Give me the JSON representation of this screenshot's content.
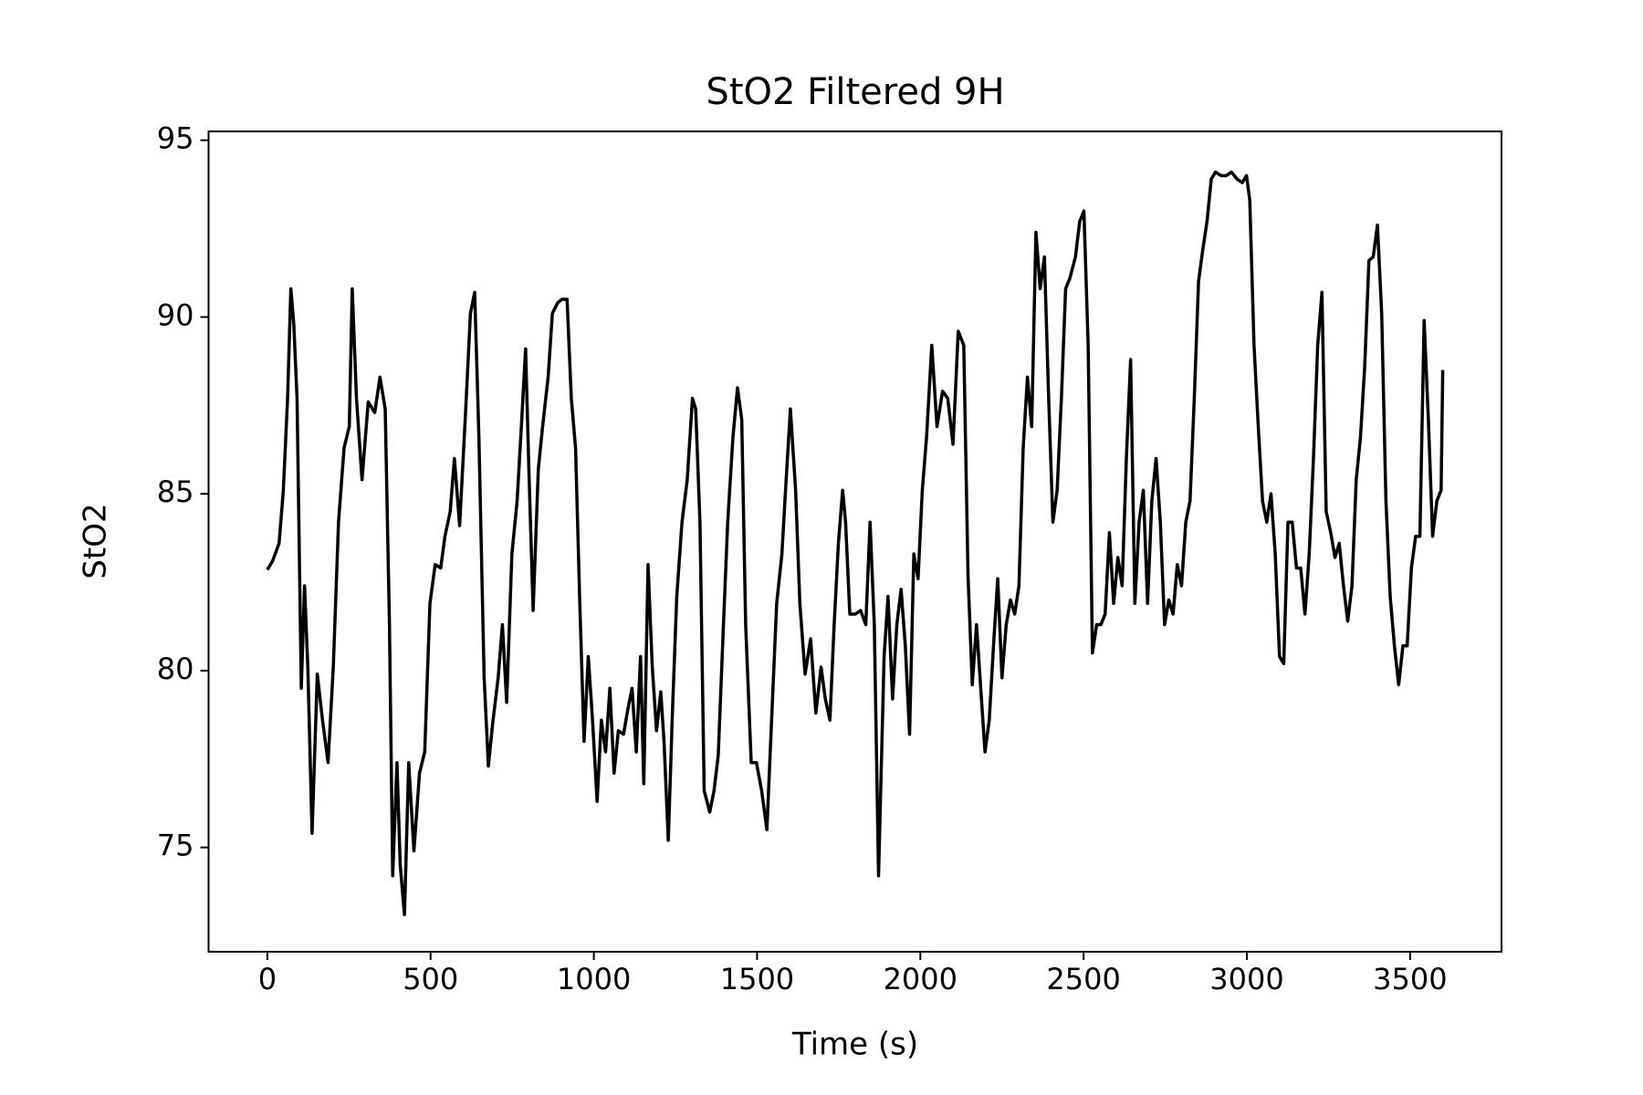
{
  "chart_data": {
    "type": "line",
    "title": "StO2 Filtered 9H",
    "x_label": "Time (s)",
    "y_label": "StO2",
    "xlim": [
      -180,
      3780
    ],
    "ylim": [
      72.05,
      95.25
    ],
    "xticks": [
      0,
      500,
      1000,
      1500,
      2000,
      2500,
      3000,
      3500
    ],
    "yticks": [
      75,
      80,
      85,
      90,
      95
    ],
    "grid": false,
    "series": [
      {
        "color": "#000000",
        "x": [
          0,
          16,
          36,
          49,
          62,
          72,
          81,
          91,
          104,
          114,
          124,
          137,
          153,
          169,
          186,
          202,
          218,
          235,
          251,
          260,
          273,
          290,
          309,
          329,
          345,
          361,
          374,
          384,
          397,
          407,
          420,
          433,
          449,
          466,
          482,
          498,
          514,
          531,
          544,
          560,
          573,
          589,
          606,
          622,
          635,
          648,
          664,
          677,
          690,
          707,
          720,
          733,
          749,
          765,
          778,
          791,
          801,
          814,
          830,
          843,
          860,
          873,
          889,
          902,
          918,
          931,
          944,
          957,
          970,
          983,
          996,
          1010,
          1023,
          1036,
          1049,
          1062,
          1075,
          1091,
          1104,
          1117,
          1130,
          1143,
          1153,
          1166,
          1179,
          1192,
          1205,
          1215,
          1228,
          1241,
          1254,
          1270,
          1286,
          1302,
          1312,
          1325,
          1338,
          1355,
          1368,
          1381,
          1397,
          1410,
          1426,
          1440,
          1453,
          1465,
          1482,
          1498,
          1514,
          1530,
          1543,
          1560,
          1576,
          1589,
          1602,
          1618,
          1631,
          1647,
          1664,
          1680,
          1696,
          1709,
          1723,
          1736,
          1749,
          1762,
          1771,
          1784,
          1801,
          1817,
          1833,
          1846,
          1859,
          1872,
          1889,
          1901,
          1915,
          1928,
          1941,
          1954,
          1967,
          1980,
          1993,
          2006,
          2019,
          2035,
          2051,
          2068,
          2084,
          2100,
          2116,
          2133,
          2146,
          2159,
          2172,
          2185,
          2198,
          2211,
          2224,
          2237,
          2250,
          2263,
          2276,
          2289,
          2302,
          2315,
          2328,
          2341,
          2354,
          2367,
          2380,
          2393,
          2406,
          2419,
          2432,
          2445,
          2458,
          2475,
          2488,
          2501,
          2514,
          2527,
          2540,
          2553,
          2566,
          2579,
          2592,
          2605,
          2618,
          2631,
          2644,
          2657,
          2670,
          2683,
          2696,
          2709,
          2722,
          2735,
          2748,
          2761,
          2774,
          2787,
          2800,
          2813,
          2826,
          2839,
          2852,
          2865,
          2878,
          2891,
          2904,
          2921,
          2937,
          2953,
          2970,
          2986,
          2999,
          3009,
          3022,
          3035,
          3048,
          3061,
          3074,
          3087,
          3100,
          3113,
          3126,
          3139,
          3152,
          3165,
          3178,
          3191,
          3204,
          3217,
          3230,
          3243,
          3257,
          3270,
          3283,
          3296,
          3309,
          3322,
          3335,
          3348,
          3361,
          3374,
          3387,
          3400,
          3413,
          3426,
          3439,
          3452,
          3465,
          3478,
          3491,
          3504,
          3517,
          3530,
          3543,
          3556,
          3569,
          3582,
          3595,
          3600
        ],
        "values": [
          82.85,
          83.1,
          83.6,
          85.1,
          87.7,
          90.8,
          89.8,
          87.7,
          79.5,
          82.4,
          80.1,
          75.4,
          79.9,
          78.6,
          77.4,
          80.1,
          84.2,
          86.3,
          86.9,
          90.8,
          87.7,
          85.4,
          87.6,
          87.3,
          88.3,
          87.4,
          81.3,
          74.2,
          77.4,
          74.5,
          73.1,
          77.4,
          74.9,
          77.1,
          77.7,
          81.9,
          83.0,
          82.9,
          83.8,
          84.5,
          86.0,
          84.1,
          87.1,
          90.1,
          90.7,
          86.6,
          79.8,
          77.3,
          78.5,
          79.8,
          81.3,
          79.1,
          83.3,
          84.8,
          86.9,
          89.1,
          85.7,
          81.7,
          85.7,
          86.9,
          88.3,
          90.1,
          90.4,
          90.5,
          90.5,
          87.7,
          86.3,
          81.9,
          78.0,
          80.4,
          78.6,
          76.3,
          78.6,
          77.7,
          79.5,
          77.1,
          78.3,
          78.2,
          78.9,
          79.5,
          77.7,
          80.4,
          76.8,
          83.0,
          80.1,
          78.3,
          79.4,
          78.0,
          75.2,
          78.9,
          82.1,
          84.2,
          85.4,
          87.7,
          87.4,
          84.2,
          76.6,
          76.0,
          76.6,
          77.6,
          81.3,
          84.2,
          86.6,
          88.0,
          87.1,
          81.3,
          77.4,
          77.4,
          76.6,
          75.5,
          78.3,
          81.9,
          83.3,
          85.4,
          87.4,
          85.1,
          81.9,
          79.9,
          80.9,
          78.8,
          80.1,
          79.2,
          78.6,
          81.3,
          83.6,
          85.1,
          84.2,
          81.6,
          81.6,
          81.7,
          81.3,
          84.2,
          81.3,
          74.2,
          80.4,
          82.1,
          79.2,
          81.3,
          82.3,
          80.7,
          78.2,
          83.3,
          82.6,
          85.1,
          86.6,
          89.2,
          86.9,
          87.9,
          87.7,
          86.4,
          89.6,
          89.2,
          82.7,
          79.6,
          81.3,
          79.5,
          77.7,
          78.6,
          80.7,
          82.6,
          79.8,
          81.3,
          82.0,
          81.6,
          82.4,
          86.3,
          88.3,
          86.9,
          92.4,
          90.8,
          91.7,
          87.7,
          84.2,
          85.1,
          87.7,
          90.8,
          91.1,
          91.7,
          92.7,
          93.0,
          89.2,
          80.5,
          81.3,
          81.3,
          81.6,
          83.9,
          81.9,
          83.2,
          82.4,
          86.0,
          88.8,
          81.9,
          84.2,
          85.1,
          81.9,
          84.8,
          86.0,
          84.2,
          81.3,
          82.0,
          81.6,
          83.0,
          82.4,
          84.2,
          84.8,
          87.7,
          91.0,
          91.9,
          92.7,
          93.9,
          94.1,
          94.0,
          94.0,
          94.1,
          93.9,
          93.8,
          94.0,
          93.3,
          89.2,
          86.9,
          84.8,
          84.2,
          85.0,
          83.3,
          80.4,
          80.2,
          84.2,
          84.2,
          82.9,
          82.9,
          81.6,
          83.3,
          86.0,
          89.2,
          90.7,
          84.5,
          83.9,
          83.2,
          83.6,
          82.4,
          81.4,
          82.4,
          85.4,
          86.6,
          88.6,
          91.6,
          91.7,
          92.6,
          90.1,
          84.8,
          82.1,
          80.7,
          79.6,
          80.7,
          80.7,
          82.9,
          83.8,
          83.8,
          89.9,
          87.1,
          83.8,
          84.8,
          85.1,
          88.5
        ]
      }
    ]
  }
}
